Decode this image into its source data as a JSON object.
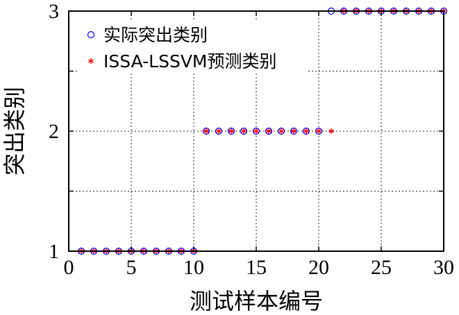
{
  "chart_data": {
    "type": "scatter",
    "xlabel": "测试样本编号",
    "ylabel": "突出类别",
    "xlim": [
      0,
      30
    ],
    "ylim": [
      1,
      3
    ],
    "xticks": [
      0,
      5,
      10,
      15,
      20,
      25,
      30
    ],
    "yticks": [
      1,
      2,
      3
    ],
    "grid": true,
    "legend": "top-left",
    "series": [
      {
        "name": "实际突出类别",
        "marker": "circle-open",
        "color": "#0000ff",
        "x": [
          1,
          2,
          3,
          4,
          5,
          6,
          7,
          8,
          9,
          10,
          11,
          12,
          13,
          14,
          15,
          16,
          17,
          18,
          19,
          20,
          21,
          22,
          23,
          24,
          25,
          26,
          27,
          28,
          29,
          30
        ],
        "y": [
          1,
          1,
          1,
          1,
          1,
          1,
          1,
          1,
          1,
          1,
          2,
          2,
          2,
          2,
          2,
          2,
          2,
          2,
          2,
          2,
          3,
          3,
          3,
          3,
          3,
          3,
          3,
          3,
          3,
          3
        ]
      },
      {
        "name": "ISSA-LSSVM预测类别",
        "marker": "asterisk",
        "color": "#ff0000",
        "x": [
          1,
          2,
          3,
          4,
          5,
          6,
          7,
          8,
          9,
          10,
          11,
          12,
          13,
          14,
          15,
          16,
          17,
          18,
          19,
          20,
          21,
          22,
          23,
          24,
          25,
          26,
          27,
          28,
          29,
          30
        ],
        "y": [
          1,
          1,
          1,
          1,
          1,
          1,
          1,
          1,
          1,
          1,
          2,
          2,
          2,
          2,
          2,
          2,
          2,
          2,
          2,
          2,
          2,
          3,
          3,
          3,
          3,
          3,
          3,
          3,
          3,
          3
        ]
      }
    ]
  }
}
